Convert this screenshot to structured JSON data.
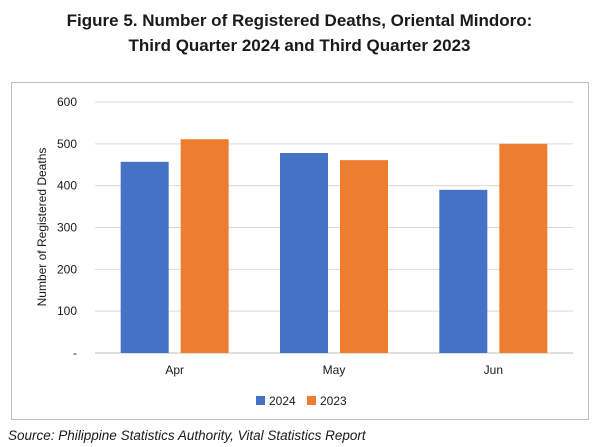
{
  "title_line1": "Figure 5.  Number of Registered Deaths, Oriental Mindoro:",
  "title_line2": "Third Quarter 2024 and Third Quarter 2023",
  "source": "Source: Philippine Statistics Authority, Vital Statistics Report",
  "colors": {
    "s2024": "#4472C4",
    "s2023": "#ED7D31",
    "grid": "#d9d9d9",
    "axis": "#bfbfbf"
  },
  "chart_data": {
    "type": "bar",
    "categories": [
      "Apr",
      "May",
      "Jun"
    ],
    "series": [
      {
        "name": "2024",
        "values": [
          457,
          478,
          390
        ]
      },
      {
        "name": "2023",
        "values": [
          511,
          461,
          500
        ]
      }
    ],
    "ylabel": "Number of Registered Deaths",
    "xlabel": "",
    "ylim": [
      0,
      600
    ],
    "yticks": [
      "-",
      "100",
      "200",
      "300",
      "400",
      "500",
      "600"
    ],
    "grid": true,
    "legend": "bottom"
  }
}
